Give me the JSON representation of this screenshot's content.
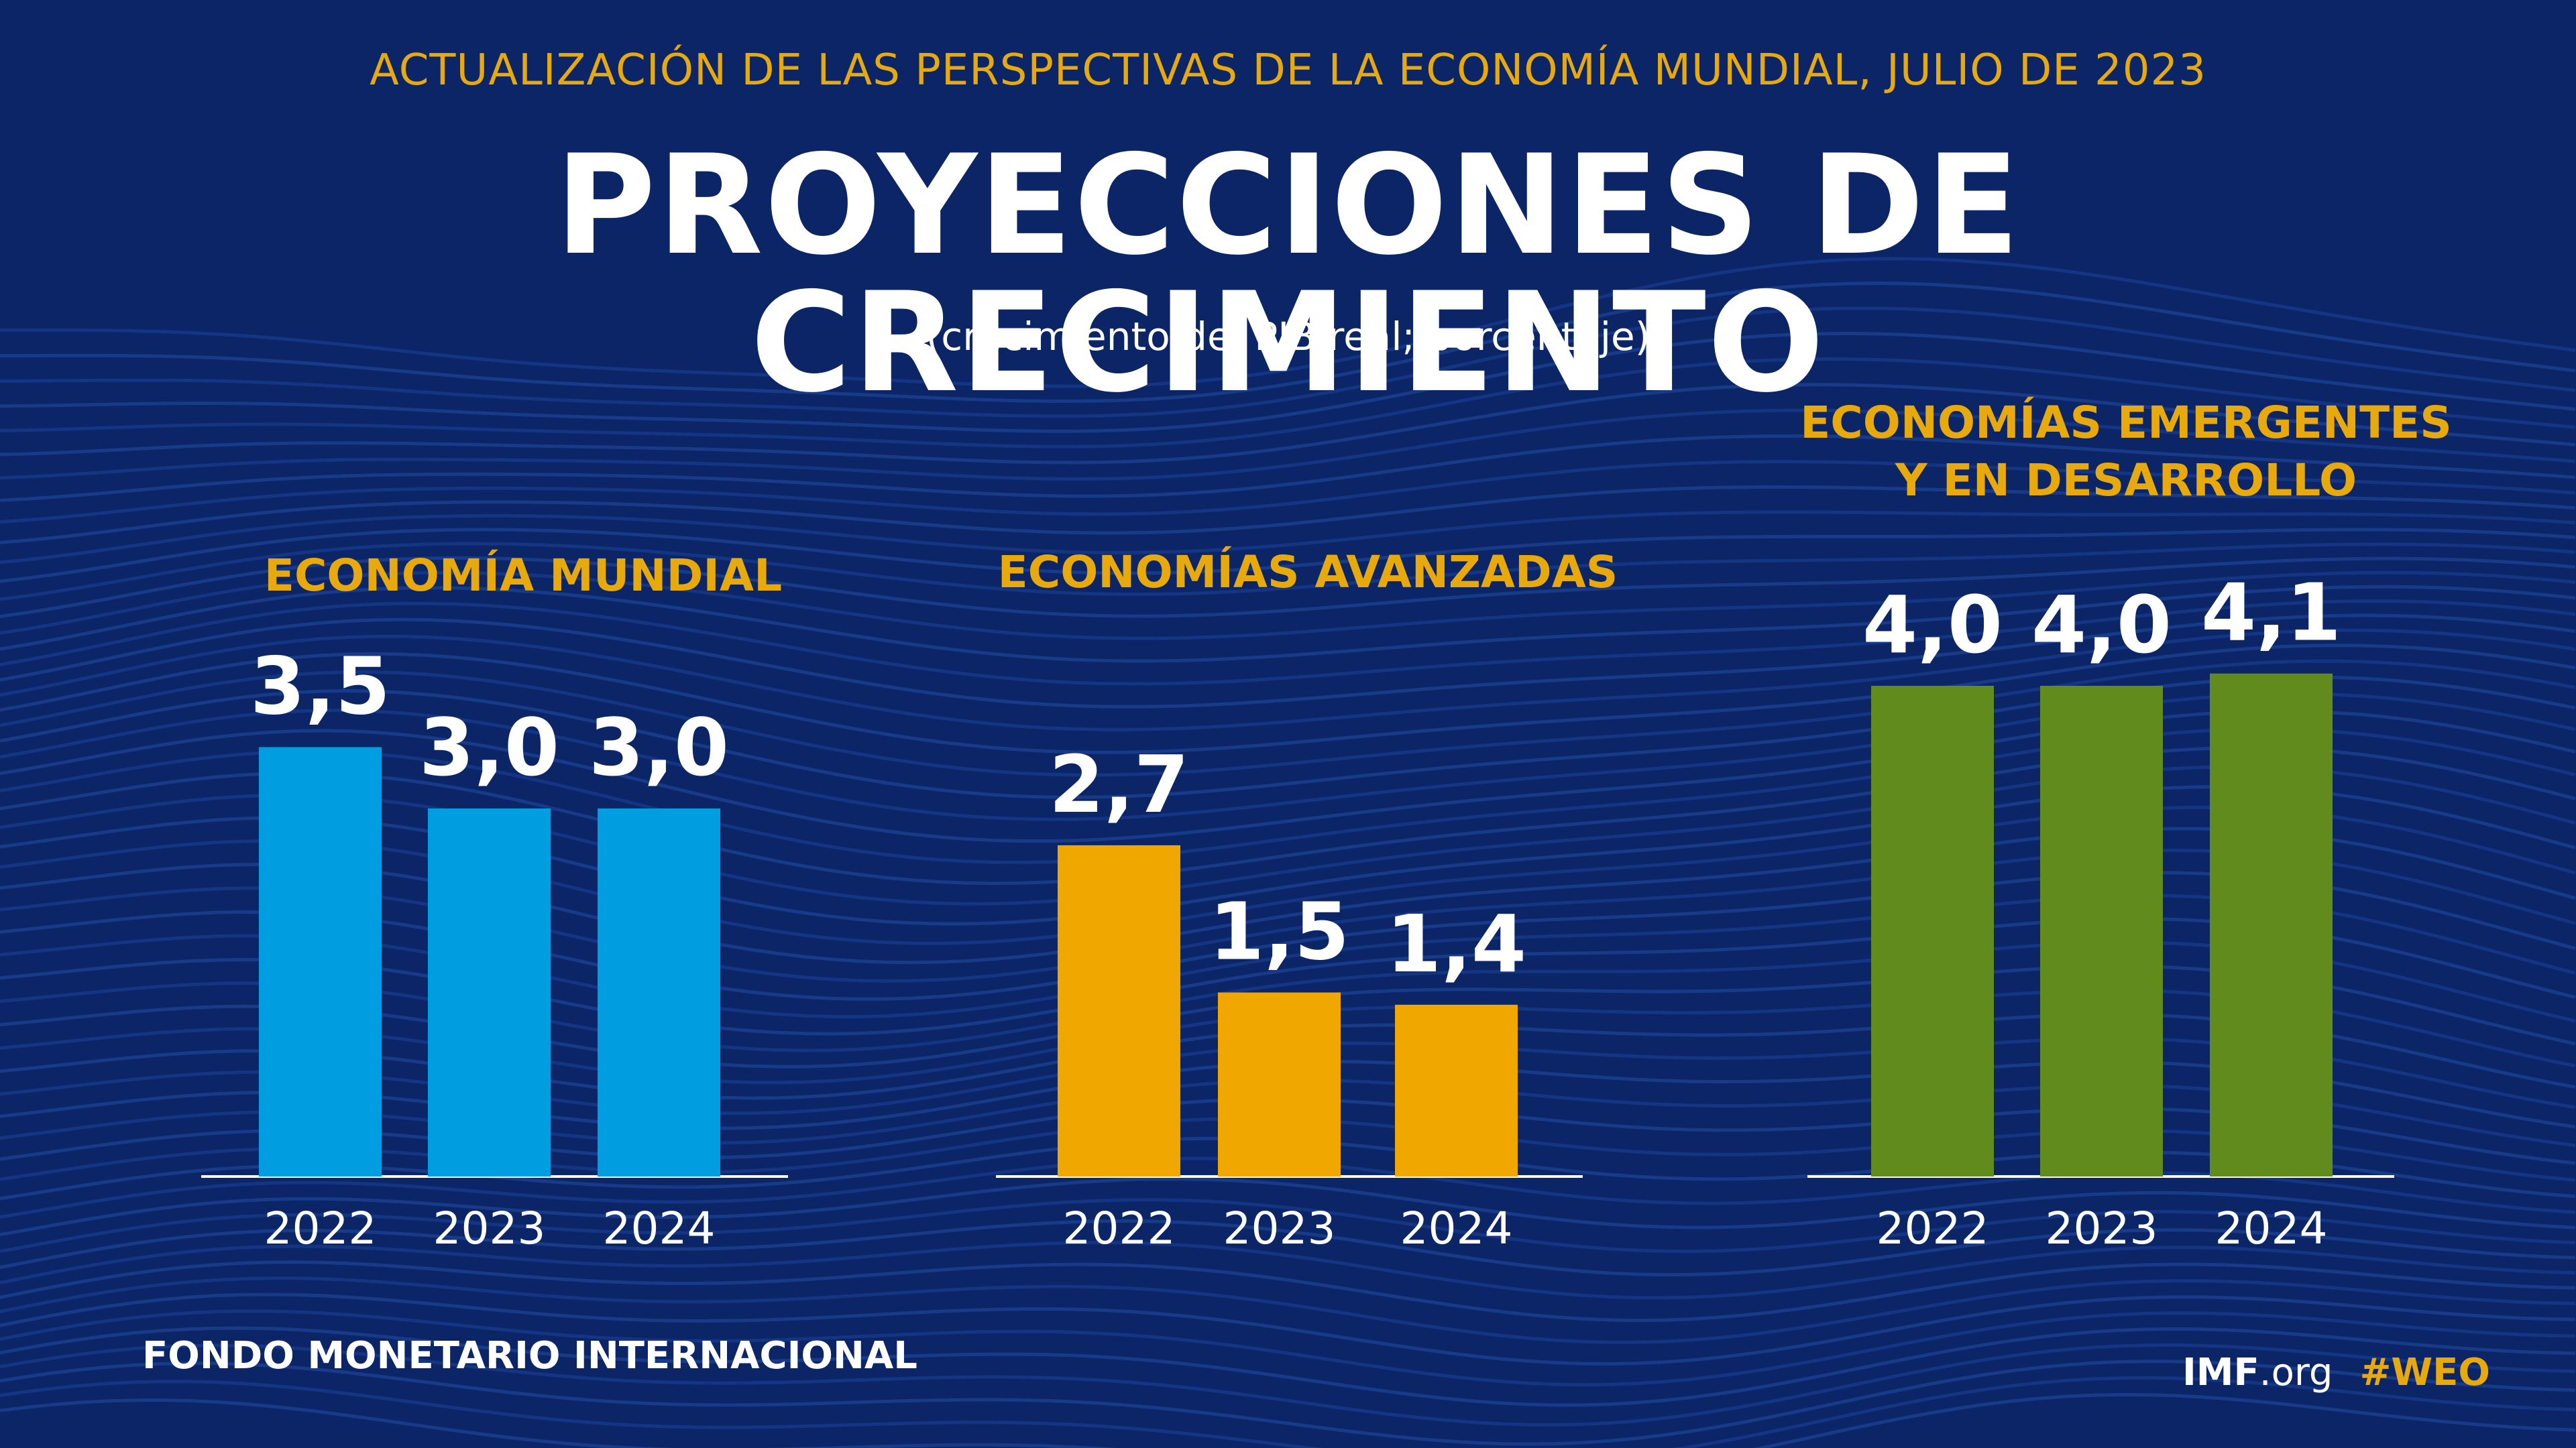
{
  "header": {
    "kicker": "ACTUALIZACIÓN DE LAS PERSPECTIVAS DE LA ECONOMÍA MUNDIAL, JULIO DE 2023",
    "title": "PROYECCIONES DE CRECIMIENTO",
    "units": "(crecimiento del PIB real; porcentaje)"
  },
  "footer": {
    "org": "FONDO MONETARIO INTERNACIONAL",
    "site_bold": "IMF",
    "site_rest": ".org",
    "hashtag": "#WEO"
  },
  "colors": {
    "background": "#0b2566",
    "accent": "#e8a90c",
    "world": "#009ee0",
    "advanced": "#f0a800",
    "emerging": "#628b1e"
  },
  "chart_data": [
    {
      "type": "bar",
      "title": "ECONOMÍA MUNDIAL",
      "categories": [
        "2022",
        "2023",
        "2024"
      ],
      "values": [
        3.5,
        3.0,
        3.0
      ],
      "labels": [
        "3,5",
        "3,0",
        "3,0"
      ],
      "color": "#009ee0"
    },
    {
      "type": "bar",
      "title": "ECONOMÍAS AVANZADAS",
      "categories": [
        "2022",
        "2023",
        "2024"
      ],
      "values": [
        2.7,
        1.5,
        1.4
      ],
      "labels": [
        "2,7",
        "1,5",
        "1,4"
      ],
      "color": "#f0a800"
    },
    {
      "type": "bar",
      "title": "ECONOMÍAS EMERGENTES\nY EN DESARROLLO",
      "title_lines": [
        "ECONOMÍAS EMERGENTES",
        "Y EN DESARROLLO"
      ],
      "categories": [
        "2022",
        "2023",
        "2024"
      ],
      "values": [
        4.0,
        4.0,
        4.1
      ],
      "labels": [
        "4,0",
        "4,0",
        "4,1"
      ],
      "color": "#628b1e"
    }
  ]
}
